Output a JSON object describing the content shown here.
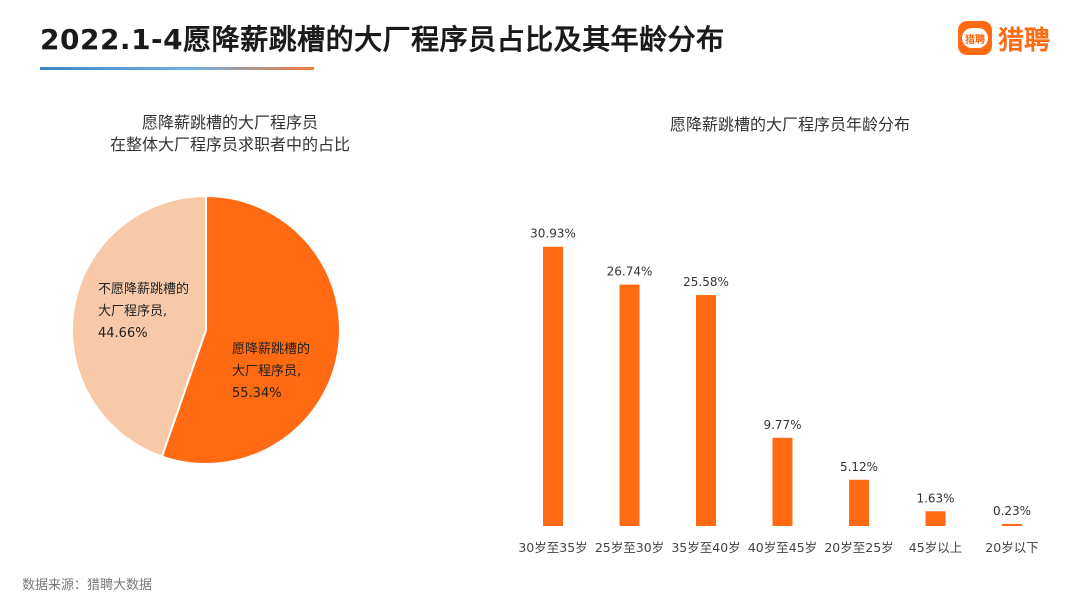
{
  "header": {
    "title": "2022.1-4愿降薪跳槽的大厂程序员占比及其年龄分布",
    "logo_mark_text": "猎聘",
    "logo_text": "猎聘"
  },
  "colors": {
    "accent": "#ff6a13",
    "pie_light": "#f7c9a9",
    "bar": "#ff6a13"
  },
  "chart_data": [
    {
      "type": "pie",
      "title_lines": [
        "愿降薪跳槽的大厂程序员",
        "在整体大厂程序员求职者中的占比"
      ],
      "slices": [
        {
          "label_lines": [
            "愿降薪跳槽的",
            "大厂程序员,"
          ],
          "value": 55.34,
          "value_label": "55.34%",
          "color": "#ff6a13"
        },
        {
          "label_lines": [
            "不愿降薪跳槽的",
            "大厂程序员,"
          ],
          "value": 44.66,
          "value_label": "44.66%",
          "color": "#f7c9a9"
        }
      ]
    },
    {
      "type": "bar",
      "title": "愿降薪跳槽的大厂程序员年龄分布",
      "categories": [
        "30岁至35岁",
        "25岁至30岁",
        "35岁至40岁",
        "40岁至45岁",
        "20岁至25岁",
        "45岁以上",
        "20岁以下"
      ],
      "values": [
        30.93,
        26.74,
        25.58,
        9.77,
        5.12,
        1.63,
        0.23
      ],
      "value_labels": [
        "30.93%",
        "26.74%",
        "25.58%",
        "9.77%",
        "5.12%",
        "1.63%",
        "0.23%"
      ],
      "ylim": [
        0,
        35
      ],
      "grid": false
    }
  ],
  "footer": {
    "source": "数据来源：猎聘大数据"
  }
}
